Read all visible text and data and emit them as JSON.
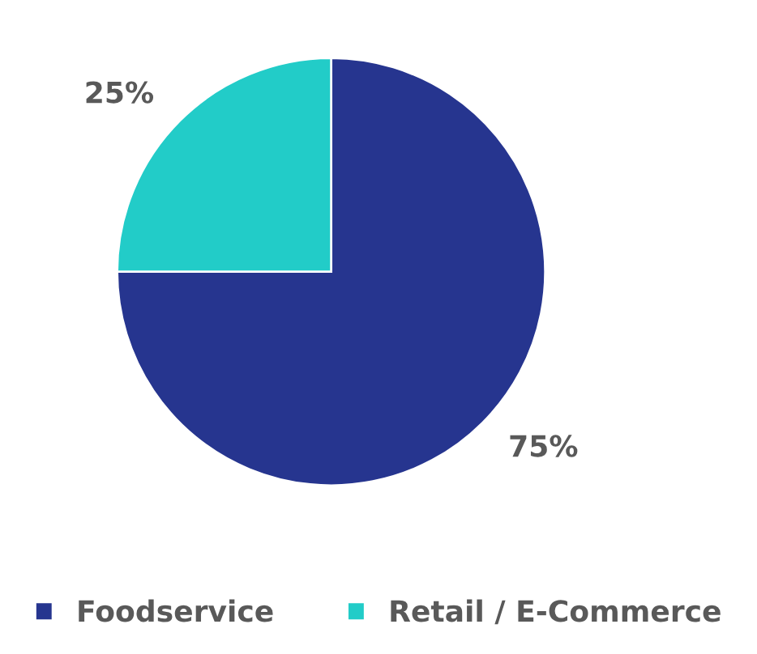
{
  "chart_data": {
    "type": "pie",
    "categories": [
      "Foodservice",
      "Retail / E-Commerce"
    ],
    "values": [
      75,
      25
    ],
    "colors": [
      "#26358f",
      "#22ccc8"
    ],
    "value_labels": [
      "75%",
      "25%"
    ],
    "legend": "bottom"
  }
}
